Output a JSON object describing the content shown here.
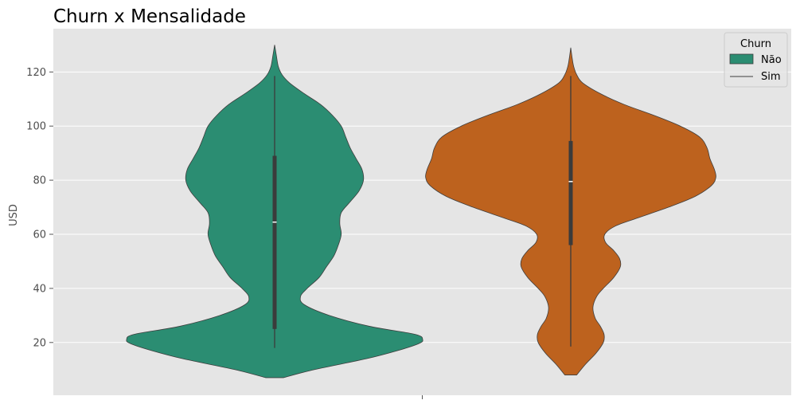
{
  "chart_data": {
    "type": "violin",
    "title": "Churn x Mensalidade",
    "xlabel": "",
    "ylabel": "USD",
    "ylim": [
      0.5,
      136
    ],
    "yticks": [
      20,
      40,
      60,
      80,
      100,
      120
    ],
    "grid": true,
    "legend": {
      "title": "Churn",
      "position": "top-right",
      "entries": [
        "Não",
        "Sim"
      ]
    },
    "colors": {
      "Não": "#2b8d72",
      "Sim": "#bd621e",
      "background": "#e5e5e5",
      "grid": "#ffffff",
      "outline": "#3d3d3d",
      "box": "#3b3b3b"
    },
    "series": [
      {
        "name": "Não",
        "min": 18,
        "q1": 25,
        "median": 64.5,
        "q3": 89,
        "max": 118.5,
        "kde_max_density_ratio": 1.0,
        "density": [
          [
            7,
            0.06
          ],
          [
            10,
            0.27
          ],
          [
            14,
            0.62
          ],
          [
            17,
            0.83
          ],
          [
            19.5,
            0.97
          ],
          [
            21,
            1.0
          ],
          [
            23,
            0.95
          ],
          [
            26,
            0.64
          ],
          [
            30,
            0.37
          ],
          [
            34,
            0.2
          ],
          [
            37,
            0.175
          ],
          [
            40,
            0.22
          ],
          [
            44,
            0.3
          ],
          [
            48,
            0.35
          ],
          [
            52,
            0.4
          ],
          [
            56,
            0.43
          ],
          [
            60,
            0.45
          ],
          [
            64,
            0.44
          ],
          [
            68,
            0.45
          ],
          [
            72,
            0.51
          ],
          [
            76,
            0.57
          ],
          [
            80,
            0.6
          ],
          [
            84,
            0.59
          ],
          [
            88,
            0.55
          ],
          [
            92,
            0.51
          ],
          [
            96,
            0.48
          ],
          [
            100,
            0.45
          ],
          [
            104,
            0.39
          ],
          [
            108,
            0.31
          ],
          [
            112,
            0.2
          ],
          [
            116,
            0.1
          ],
          [
            119,
            0.05
          ],
          [
            122,
            0.025
          ],
          [
            126,
            0.012
          ],
          [
            130,
            0.0
          ]
        ]
      },
      {
        "name": "Sim",
        "min": 18.5,
        "q1": 56,
        "median": 79.5,
        "q3": 94.5,
        "max": 118.5,
        "kde_max_density_ratio": 1.0,
        "density": [
          [
            8,
            0.04
          ],
          [
            12,
            0.1
          ],
          [
            16,
            0.17
          ],
          [
            20,
            0.22
          ],
          [
            23,
            0.225
          ],
          [
            26,
            0.2
          ],
          [
            29,
            0.165
          ],
          [
            33,
            0.15
          ],
          [
            37,
            0.175
          ],
          [
            40,
            0.22
          ],
          [
            44,
            0.29
          ],
          [
            48,
            0.335
          ],
          [
            51,
            0.33
          ],
          [
            54,
            0.29
          ],
          [
            57,
            0.235
          ],
          [
            60,
            0.23
          ],
          [
            63,
            0.3
          ],
          [
            66,
            0.45
          ],
          [
            70,
            0.66
          ],
          [
            74,
            0.84
          ],
          [
            78,
            0.95
          ],
          [
            81,
            0.98
          ],
          [
            84,
            0.97
          ],
          [
            88,
            0.94
          ],
          [
            92,
            0.92
          ],
          [
            96,
            0.87
          ],
          [
            100,
            0.74
          ],
          [
            104,
            0.56
          ],
          [
            108,
            0.36
          ],
          [
            112,
            0.2
          ],
          [
            116,
            0.08
          ],
          [
            119,
            0.04
          ],
          [
            122,
            0.02
          ],
          [
            125,
            0.01
          ],
          [
            129,
            0.0
          ]
        ]
      }
    ]
  }
}
